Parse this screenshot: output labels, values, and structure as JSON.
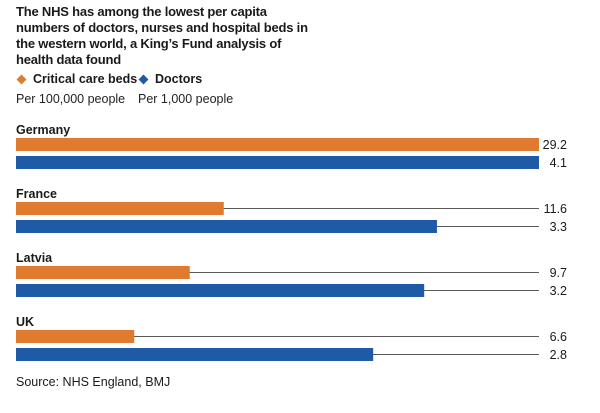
{
  "title": "The NHS has among the lowest per capita numbers of doctors, nurses and hospital beds in the western world, a King’s Fund analysis of health data found",
  "legend": [
    {
      "label": "Critical care beds",
      "sub": "Per 100,000 people",
      "color": "#e07a2e"
    },
    {
      "label": "Doctors",
      "sub": "Per 1,000 people",
      "color": "#1f5aa6"
    }
  ],
  "source": "Source: NHS England, BMJ",
  "chart_data": {
    "type": "bar",
    "orientation": "horizontal",
    "categories": [
      "Germany",
      "France",
      "Latvia",
      "UK"
    ],
    "series": [
      {
        "name": "Critical care beds",
        "values": [
          29.2,
          11.6,
          9.7,
          6.6
        ],
        "labels": [
          "29.2",
          "11.6",
          "9.7",
          "6.6"
        ],
        "color": "#e07a2e"
      },
      {
        "name": "Doctors",
        "values": [
          4.1,
          3.3,
          3.2,
          2.8
        ],
        "labels": [
          "4.1",
          "3.3",
          "3.2",
          "2.8"
        ],
        "color": "#1f5aa6"
      }
    ],
    "scale_note": "Each series is scaled to its own maximum"
  }
}
